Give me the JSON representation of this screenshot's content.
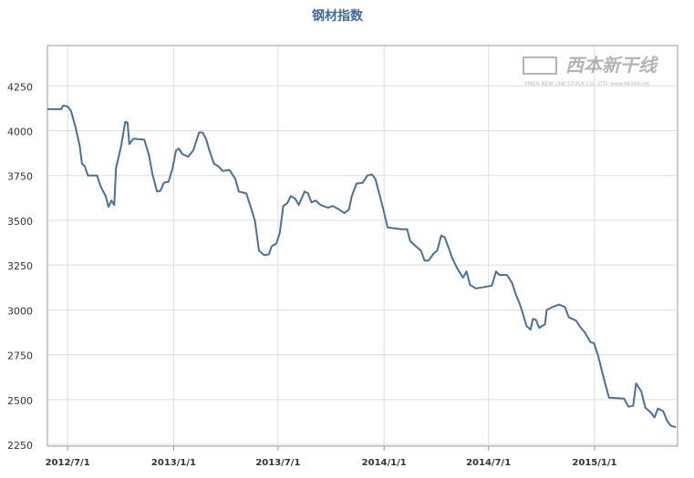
{
  "chart_data": {
    "type": "line",
    "title": "钢材指数",
    "watermark": {
      "name": "西本新干线",
      "subtitle": "XIBEN NEW LINE STOCK CO., LTD. www.96369.net"
    },
    "x": [
      "2012/5/27",
      "2012/6/20",
      "2012/6/23",
      "2012/7/1",
      "2012/7/7",
      "2012/7/15",
      "2012/7/22",
      "2012/7/26",
      "2012/7/31",
      "2012/8/5",
      "2012/8/21",
      "2012/8/27",
      "2012/9/5",
      "2012/9/10",
      "2012/9/15",
      "2012/9/20",
      "2012/9/23",
      "2012/10/2",
      "2012/10/9",
      "2012/10/13",
      "2012/10/16",
      "2012/10/23",
      "2012/11/11",
      "2012/11/19",
      "2012/11/25",
      "2012/12/3",
      "2012/12/9",
      "2012/12/15",
      "2012/12/23",
      "2012/12/30",
      "2013/1/5",
      "2013/1/10",
      "2013/1/16",
      "2013/1/26",
      "2013/2/4",
      "2013/2/14",
      "2013/2/20",
      "2013/2/26",
      "2013/3/4",
      "2013/3/12",
      "2013/3/20",
      "2013/3/27",
      "2013/4/8",
      "2013/4/18",
      "2013/4/24",
      "2013/5/7",
      "2013/5/16",
      "2013/5/22",
      "2013/5/29",
      "2013/6/7",
      "2013/6/15",
      "2013/6/20",
      "2013/6/28",
      "2013/7/4",
      "2013/7/10",
      "2013/7/17",
      "2013/7/23",
      "2013/7/31",
      "2013/8/6",
      "2013/8/16",
      "2013/8/22",
      "2013/8/28",
      "2013/9/4",
      "2013/9/13",
      "2013/9/26",
      "2013/10/4",
      "2013/10/15",
      "2013/10/24",
      "2013/11/1",
      "2013/11/6",
      "2013/11/14",
      "2013/11/25",
      "2013/12/3",
      "2013/12/11",
      "2013/12/17",
      "2013/12/23",
      "2013/12/30",
      "2014/1/7",
      "2014/1/30",
      "2014/2/10",
      "2014/2/15",
      "2014/2/25",
      "2014/3/6",
      "2014/3/12",
      "2014/3/19",
      "2014/3/28",
      "2014/4/3",
      "2014/4/10",
      "2014/4/16",
      "2014/4/22",
      "2014/4/29",
      "2014/5/8",
      "2014/5/18",
      "2014/5/24",
      "2014/5/30",
      "2014/6/9",
      "2014/7/7",
      "2014/7/14",
      "2014/7/20",
      "2014/8/2",
      "2014/8/11",
      "2014/8/17",
      "2014/8/24",
      "2014/8/30",
      "2014/9/5",
      "2014/9/12",
      "2014/9/16",
      "2014/9/21",
      "2014/9/27",
      "2014/10/7",
      "2014/10/10",
      "2014/10/23",
      "2014/11/1",
      "2014/11/11",
      "2014/11/17",
      "2014/11/30",
      "2014/12/6",
      "2014/12/15",
      "2014/12/25",
      "2014/12/31",
      "2015/1/7",
      "2015/1/13",
      "2015/1/19",
      "2015/1/26",
      "2015/2/21",
      "2015/3/1",
      "2015/3/9",
      "2015/3/14",
      "2015/3/23",
      "2015/3/30",
      "2015/4/8",
      "2015/4/15",
      "2015/4/21",
      "2015/4/30",
      "2015/5/7",
      "2015/5/13",
      "2015/5/22"
    ],
    "series": [
      {
        "name": "钢材指数",
        "color": "#4a6f9c",
        "values": [
          4120,
          4120,
          4140,
          4135,
          4110,
          4015,
          3915,
          3815,
          3800,
          3750,
          3750,
          3690,
          3635,
          3575,
          3610,
          3585,
          3790,
          3915,
          4050,
          4045,
          3925,
          3955,
          3950,
          3865,
          3760,
          3660,
          3665,
          3710,
          3715,
          3790,
          3890,
          3900,
          3870,
          3855,
          3890,
          3990,
          3990,
          3955,
          3890,
          3815,
          3800,
          3775,
          3780,
          3730,
          3660,
          3650,
          3560,
          3495,
          3330,
          3305,
          3310,
          3355,
          3370,
          3430,
          3580,
          3595,
          3635,
          3620,
          3585,
          3660,
          3650,
          3600,
          3610,
          3585,
          3570,
          3580,
          3560,
          3540,
          3560,
          3635,
          3705,
          3710,
          3750,
          3755,
          3730,
          3655,
          3570,
          3460,
          3450,
          3450,
          3385,
          3355,
          3330,
          3275,
          3275,
          3315,
          3330,
          3415,
          3405,
          3355,
          3290,
          3230,
          3180,
          3215,
          3140,
          3120,
          3135,
          3215,
          3195,
          3195,
          3150,
          3090,
          3035,
          2975,
          2910,
          2890,
          2950,
          2945,
          2900,
          2920,
          3000,
          3020,
          3030,
          3015,
          2960,
          2940,
          2910,
          2875,
          2820,
          2815,
          2745,
          2670,
          2595,
          2510,
          2505,
          2460,
          2465,
          2590,
          2545,
          2455,
          2430,
          2400,
          2450,
          2435,
          2380,
          2355,
          2345
        ]
      }
    ],
    "xlim": [
      "2012/5/27",
      "2015/5/25"
    ],
    "xticks": [
      "2012/7/1",
      "2013/1/1",
      "2013/7/1",
      "2014/1/1",
      "2014/7/1",
      "2015/1/1"
    ],
    "ylim": [
      2240,
      4475
    ],
    "yticks": [
      2250,
      2500,
      2750,
      3000,
      3250,
      3500,
      3750,
      4000,
      4250
    ],
    "grid": true
  }
}
